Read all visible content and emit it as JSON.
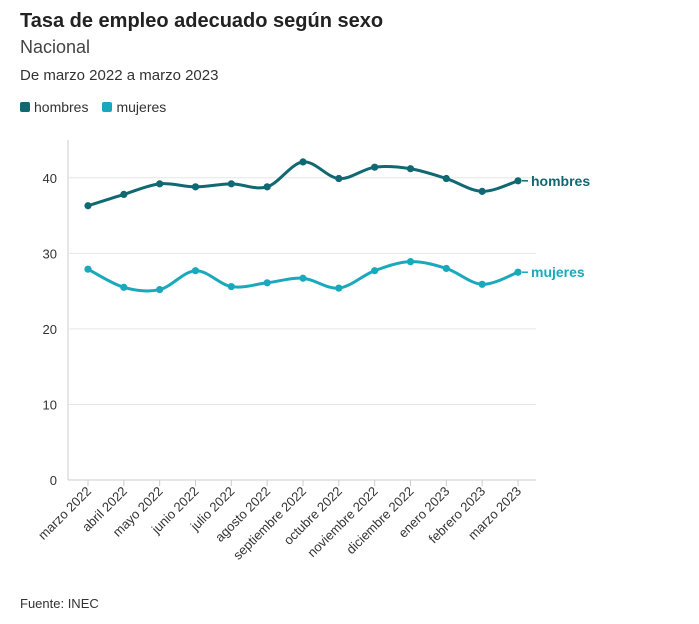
{
  "title": "Tasa de empleo adecuado según sexo",
  "subtitle": "Nacional",
  "period": "De marzo 2022 a marzo 2023",
  "source": "Fuente: INEC",
  "colors": {
    "hombres": "#0f6872",
    "mujeres": "#1aa9bc",
    "grid": "#e6e6e6",
    "axis": "#cccccc",
    "text": "#333333"
  },
  "chart_data": {
    "type": "line",
    "categories": [
      "marzo 2022",
      "abril 2022",
      "mayo 2022",
      "junio 2022",
      "julio 2022",
      "agosto 2022",
      "septiembre 2022",
      "octubre 2022",
      "noviembre 2022",
      "diciembre 2022",
      "enero 2023",
      "febrero 2023",
      "marzo 2023"
    ],
    "series": [
      {
        "name": "hombres",
        "values": [
          36.3,
          37.8,
          39.2,
          38.8,
          39.2,
          38.8,
          42.1,
          39.9,
          41.4,
          41.2,
          39.9,
          38.2,
          39.6
        ]
      },
      {
        "name": "mujeres",
        "values": [
          27.9,
          25.5,
          25.2,
          27.7,
          25.6,
          26.1,
          26.7,
          25.4,
          27.7,
          28.9,
          28.0,
          25.9,
          27.5
        ]
      }
    ],
    "yticks": [
      0,
      10,
      20,
      30,
      40
    ],
    "ylim": [
      0,
      45
    ],
    "grid": true,
    "legend": "top-left"
  }
}
